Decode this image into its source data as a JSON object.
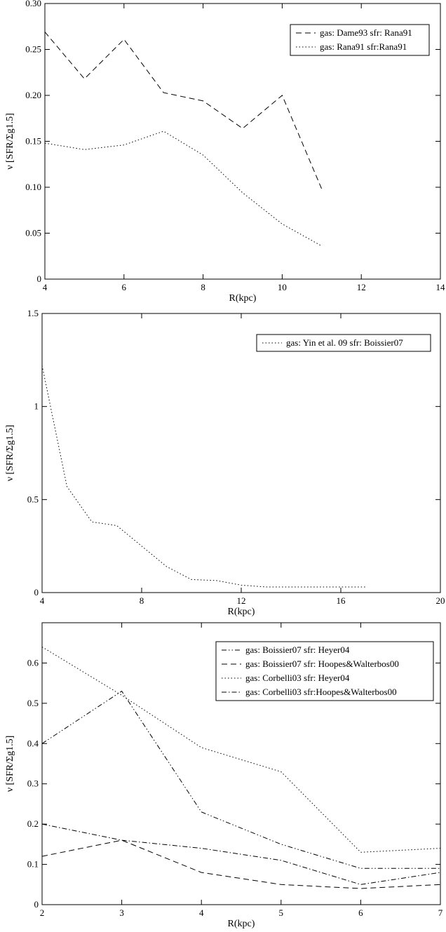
{
  "chart_data": [
    {
      "type": "line",
      "xlabel": "R(kpc)",
      "ylabel": "ν [SFR/Σg1.5]",
      "xlim": [
        4,
        14
      ],
      "ylim": [
        0,
        0.3
      ],
      "xticks": [
        4,
        6,
        8,
        10,
        12,
        14
      ],
      "yticks": [
        0,
        0.05,
        0.1,
        0.15,
        0.2,
        0.25,
        0.3
      ],
      "x_tick_labels": [
        "4",
        "6",
        "8",
        "10",
        "12",
        "14"
      ],
      "y_tick_labels": [
        "0",
        "0.05",
        "0.10",
        "0.15",
        "0.20",
        "0.25",
        "0.30"
      ],
      "legend_position": "top-right",
      "series": [
        {
          "name": "gas: Dame93 sfr: Rana91",
          "dash": "dashed",
          "x": [
            4,
            5,
            6,
            7,
            8,
            9,
            10,
            11
          ],
          "y": [
            0.269,
            0.218,
            0.261,
            0.203,
            0.194,
            0.164,
            0.2,
            0.098
          ]
        },
        {
          "name": "gas: Rana91 sfr:Rana91",
          "dash": "dotted",
          "x": [
            4,
            5,
            6,
            7,
            8,
            9,
            10,
            11
          ],
          "y": [
            0.148,
            0.141,
            0.146,
            0.161,
            0.135,
            0.094,
            0.06,
            0.036
          ]
        }
      ]
    },
    {
      "type": "line",
      "xlabel": "R(kpc)",
      "ylabel": "ν [SFR/Σg1.5]",
      "xlim": [
        4,
        20
      ],
      "ylim": [
        0,
        1.5
      ],
      "xticks": [
        4,
        8,
        12,
        16,
        20
      ],
      "yticks": [
        0,
        0.5,
        1,
        1.5
      ],
      "x_tick_labels": [
        "4",
        "8",
        "12",
        "16",
        "20"
      ],
      "y_tick_labels": [
        "0",
        "0.5",
        "1",
        "1.5"
      ],
      "legend_position": "top-right",
      "series": [
        {
          "name": "gas: Yin et al. 09 sfr: Boissier07",
          "dash": "dotted",
          "x": [
            4,
            5,
            6,
            7,
            8,
            9,
            10,
            11,
            12,
            13,
            14,
            15,
            16,
            17
          ],
          "y": [
            1.22,
            0.57,
            0.38,
            0.36,
            0.25,
            0.14,
            0.07,
            0.065,
            0.04,
            0.03,
            0.03,
            0.03,
            0.03,
            0.03
          ]
        }
      ]
    },
    {
      "type": "line",
      "xlabel": "R(kpc)",
      "ylabel": "ν [SFR/Σg1.5]",
      "xlim": [
        2,
        7
      ],
      "ylim": [
        0,
        0.7
      ],
      "xticks": [
        2,
        3,
        4,
        5,
        6,
        7
      ],
      "yticks": [
        0,
        0.1,
        0.2,
        0.3,
        0.4,
        0.5,
        0.6
      ],
      "x_tick_labels": [
        "2",
        "3",
        "4",
        "5",
        "6",
        "7"
      ],
      "y_tick_labels": [
        "0",
        "0.1",
        "0.2",
        "0.3",
        "0.4",
        "0.5",
        "0.6"
      ],
      "legend_position": "top-right",
      "series": [
        {
          "name": "gas: Boissier07 sfr: Heyer04",
          "dash": "dashdotdot",
          "x": [
            2,
            3,
            4,
            5,
            6,
            7
          ],
          "y": [
            0.4,
            0.53,
            0.23,
            0.15,
            0.09,
            0.09
          ]
        },
        {
          "name": "gas: Boissier07 sfr: Hoopes&Walterbos00",
          "dash": "dashed",
          "x": [
            2,
            3,
            4,
            5,
            6,
            7
          ],
          "y": [
            0.12,
            0.16,
            0.08,
            0.05,
            0.04,
            0.05
          ]
        },
        {
          "name": "gas: Corbelli03 sfr: Heyer04",
          "dash": "dotted",
          "x": [
            2,
            3,
            4,
            5,
            6,
            7
          ],
          "y": [
            0.64,
            0.52,
            0.39,
            0.33,
            0.13,
            0.14
          ]
        },
        {
          "name": "gas: Corbelli03 sfr:Hoopes&Walterbos00",
          "dash": "dashdot",
          "x": [
            2,
            3,
            4,
            5,
            6,
            7
          ],
          "y": [
            0.2,
            0.16,
            0.14,
            0.11,
            0.05,
            0.08
          ]
        }
      ]
    }
  ]
}
